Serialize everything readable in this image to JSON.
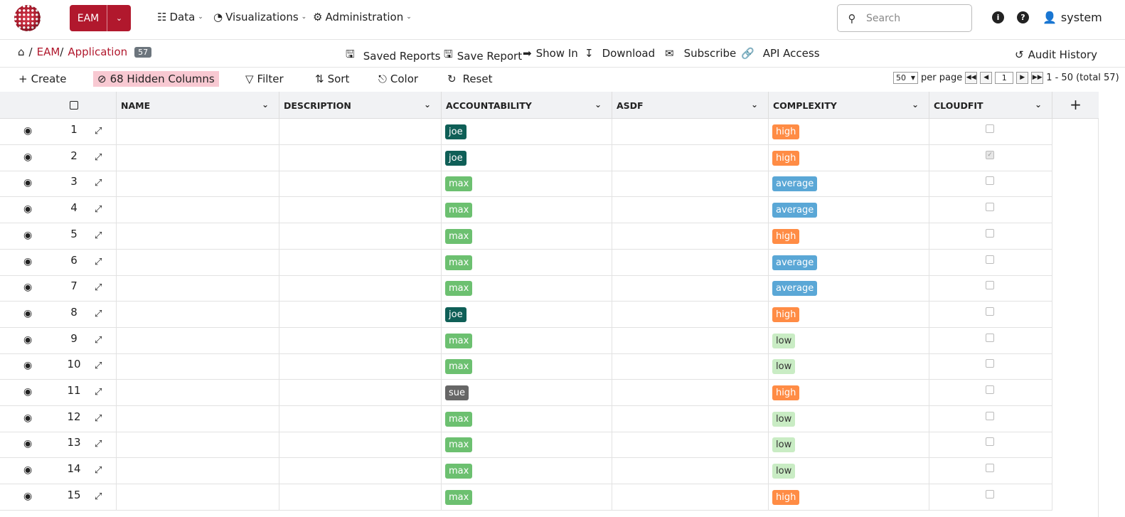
{
  "nav": {
    "app_label": "EAM",
    "menus": [
      "Data",
      "Visualizations",
      "Administration"
    ],
    "search_placeholder": "Search",
    "user": "system"
  },
  "breadcrumb": {
    "level1": "EAM",
    "level2": "Application",
    "count": "57"
  },
  "actions": {
    "saved_reports": "Saved Reports",
    "save_report": "Save Report",
    "show_in": "Show In",
    "download": "Download",
    "subscribe": "Subscribe",
    "api_access": "API Access",
    "audit_history": "Audit History"
  },
  "toolbar": {
    "create": "Create",
    "hidden_columns": "68 Hidden Columns",
    "filter": "Filter",
    "sort": "Sort",
    "color": "Color",
    "reset": "Reset"
  },
  "pager": {
    "per_page_value": "50",
    "per_page_label": "per page",
    "page": "1",
    "range": "1 - 50 (total 57)"
  },
  "columns": [
    "NAME",
    "DESCRIPTION",
    "ACCOUNTABILITY",
    "ASDF",
    "COMPLEXITY",
    "CLOUDFIT"
  ],
  "tag_colors": {
    "joe": "#0f5f57",
    "max": "#6cc070",
    "sue": "#666666",
    "high": "#ff8c45",
    "average": "#5aa7d6",
    "low": "#c9ecc4"
  },
  "rows": [
    {
      "num": "1",
      "accountability": "joe",
      "complexity": "high",
      "cloudfit": false
    },
    {
      "num": "2",
      "accountability": "joe",
      "complexity": "high",
      "cloudfit": true
    },
    {
      "num": "3",
      "accountability": "max",
      "complexity": "average",
      "cloudfit": false
    },
    {
      "num": "4",
      "accountability": "max",
      "complexity": "average",
      "cloudfit": false
    },
    {
      "num": "5",
      "accountability": "max",
      "complexity": "high",
      "cloudfit": false
    },
    {
      "num": "6",
      "accountability": "max",
      "complexity": "average",
      "cloudfit": false
    },
    {
      "num": "7",
      "accountability": "max",
      "complexity": "average",
      "cloudfit": false
    },
    {
      "num": "8",
      "accountability": "joe",
      "complexity": "high",
      "cloudfit": false
    },
    {
      "num": "9",
      "accountability": "max",
      "complexity": "low",
      "cloudfit": false
    },
    {
      "num": "10",
      "accountability": "max",
      "complexity": "low",
      "cloudfit": false
    },
    {
      "num": "11",
      "accountability": "sue",
      "complexity": "high",
      "cloudfit": false
    },
    {
      "num": "12",
      "accountability": "max",
      "complexity": "low",
      "cloudfit": false
    },
    {
      "num": "13",
      "accountability": "max",
      "complexity": "low",
      "cloudfit": false
    },
    {
      "num": "14",
      "accountability": "max",
      "complexity": "low",
      "cloudfit": false
    },
    {
      "num": "15",
      "accountability": "max",
      "complexity": "high",
      "cloudfit": false
    }
  ]
}
